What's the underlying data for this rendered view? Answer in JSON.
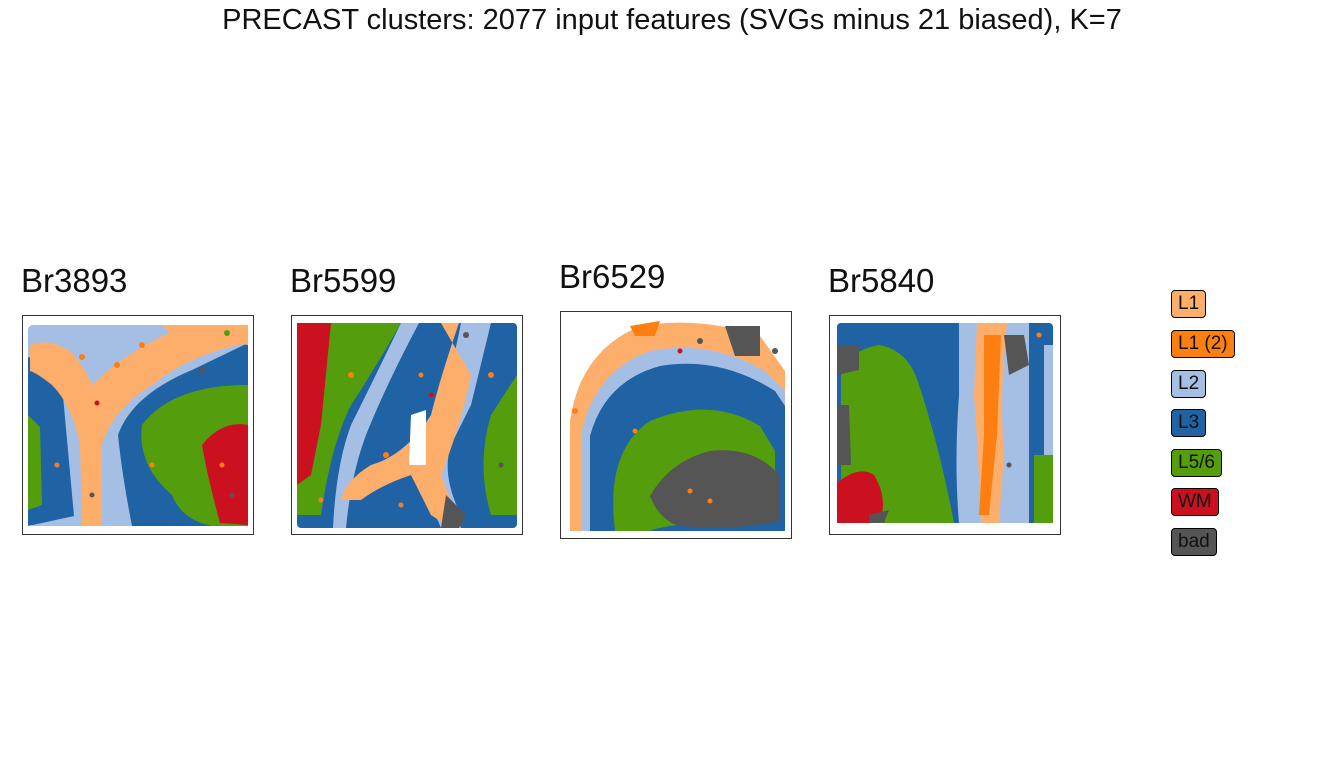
{
  "chart_data": {
    "type": "scatter",
    "title": "PRECAST clusters: 2077 input features (SVGs minus 21 biased), K=7",
    "legend": {
      "placement": "right",
      "entries": [
        {
          "label": "L1",
          "color": "#fdae6b"
        },
        {
          "label": "L1 (2)",
          "color": "#fd7f11"
        },
        {
          "label": "L2",
          "color": "#a5bee4"
        },
        {
          "label": "L3",
          "color": "#1f63a5"
        },
        {
          "label": "L5/6",
          "color": "#549e0e"
        },
        {
          "label": "WM",
          "color": "#cb1120"
        },
        {
          "label": "bad",
          "color": "#555555"
        }
      ]
    },
    "panels": [
      {
        "sample": "Br3893"
      },
      {
        "sample": "Br5599"
      },
      {
        "sample": "Br6529"
      },
      {
        "sample": "Br5840"
      }
    ]
  }
}
